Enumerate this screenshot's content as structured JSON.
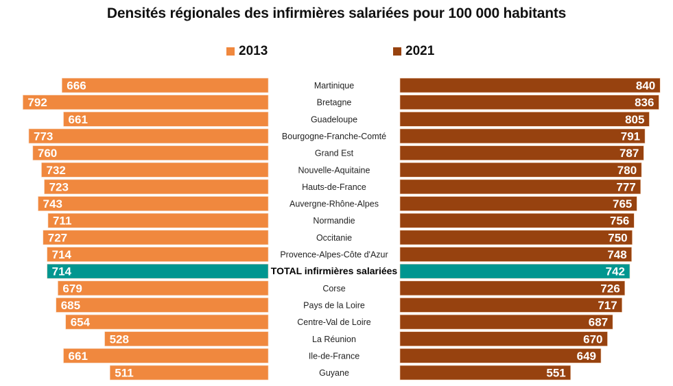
{
  "chart_data": {
    "type": "bar",
    "orientation": "horizontal-butterfly",
    "title": "Densités régionales des infirmières salariées pour 100 000 habitants",
    "xlabel": "",
    "ylabel": "",
    "grid": false,
    "legend_position": "top",
    "xlim": [
      0,
      850
    ],
    "categories": [
      "Martinique",
      "Bretagne",
      "Guadeloupe",
      "Bourgogne-Franche-Comté",
      "Grand Est",
      "Nouvelle-Aquitaine",
      "Hauts-de-France",
      "Auvergne-Rhône-Alpes",
      "Normandie",
      "Occitanie",
      "Provence-Alpes-Côte d'Azur",
      "TOTAL infirmières salariées",
      "Corse",
      "Pays de la Loire",
      "Centre-Val de Loire",
      "La Réunion",
      "Ile-de-France",
      "Guyane"
    ],
    "highlight_category": "TOTAL infirmières salariées",
    "series": [
      {
        "name": "2013",
        "side": "left",
        "color": "#F0883E",
        "values": [
          666,
          792,
          661,
          773,
          760,
          732,
          723,
          743,
          711,
          727,
          714,
          714,
          679,
          685,
          654,
          528,
          661,
          511
        ]
      },
      {
        "name": "2021",
        "side": "right",
        "color": "#97420F",
        "values": [
          840,
          836,
          805,
          791,
          787,
          780,
          777,
          765,
          756,
          750,
          748,
          742,
          726,
          717,
          687,
          670,
          649,
          551
        ]
      }
    ],
    "highlight_color": "#009690"
  }
}
